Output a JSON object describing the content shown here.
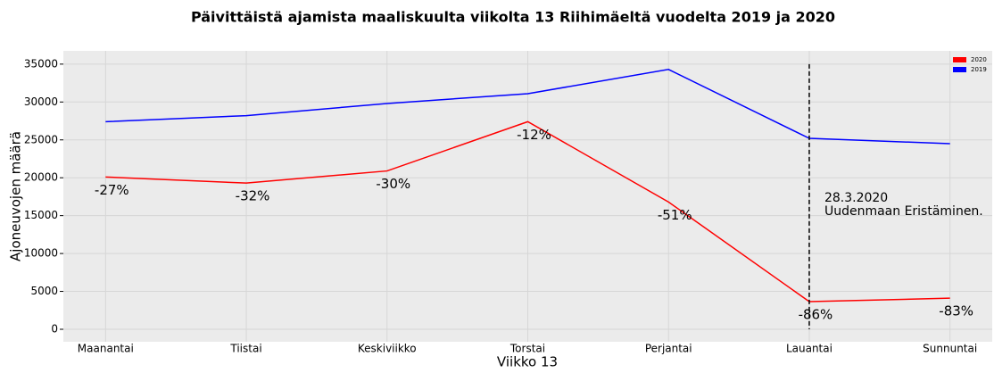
{
  "chart_data": {
    "type": "line",
    "title": "Päivittäistä ajamista maaliskuulta viikolta 13 Riihimäeltä vuodelta 2019 ja 2020",
    "xlabel": "Viikko 13",
    "ylabel": "Ajoneuvojen määrä",
    "categories": [
      "Maanantai",
      "Tiistai",
      "Keskiviikko",
      "Torstai",
      "Perjantai",
      "Lauantai",
      "Sunnuntai"
    ],
    "series": [
      {
        "name": "2020",
        "color": "#ff0000",
        "values": [
          20100,
          19300,
          20900,
          27400,
          16800,
          3650,
          4100
        ]
      },
      {
        "name": "2019",
        "color": "#0000ff",
        "values": [
          27400,
          28200,
          29800,
          31100,
          34300,
          25200,
          24500
        ]
      }
    ],
    "change_labels": [
      "-27%",
      "-32%",
      "-30%",
      "-12%",
      "-51%",
      "-86%",
      "-83%"
    ],
    "event_category": "Lauantai",
    "event_annotation": [
      "28.3.2020",
      "Uudenmaan Eristäminen."
    ],
    "ylim": [
      -1650,
      36750
    ],
    "yticks": [
      0,
      5000,
      10000,
      15000,
      20000,
      25000,
      30000,
      35000
    ],
    "grid": true,
    "legend": "upper right"
  }
}
